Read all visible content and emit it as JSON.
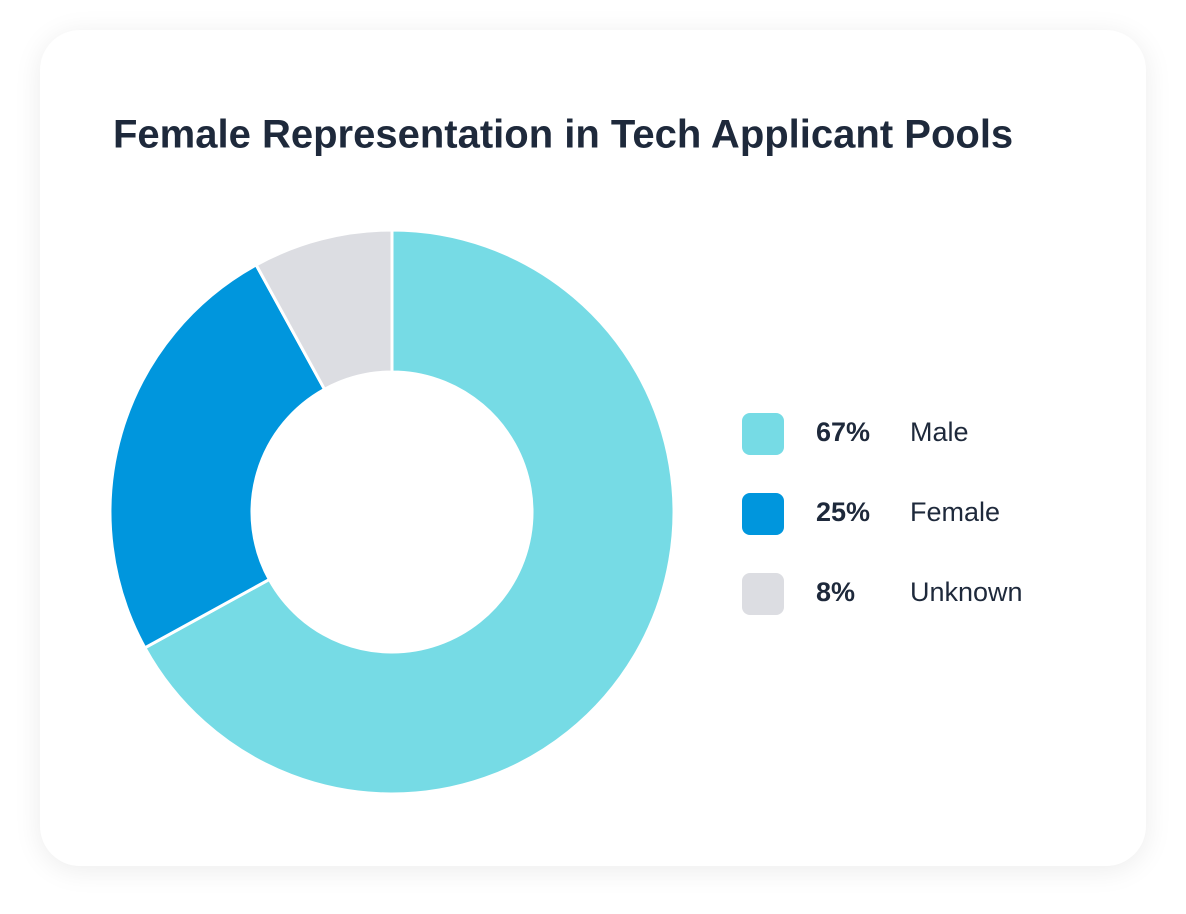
{
  "chart_data": {
    "type": "donut",
    "title": "Female Representation in Tech Applicant Pools",
    "categories": [
      "Male",
      "Female",
      "Unknown"
    ],
    "values": [
      67,
      25,
      8
    ],
    "value_labels": [
      "67%",
      "25%",
      "8%"
    ],
    "colors": [
      "#76dbe5",
      "#0096dd",
      "#dcdde2"
    ]
  }
}
